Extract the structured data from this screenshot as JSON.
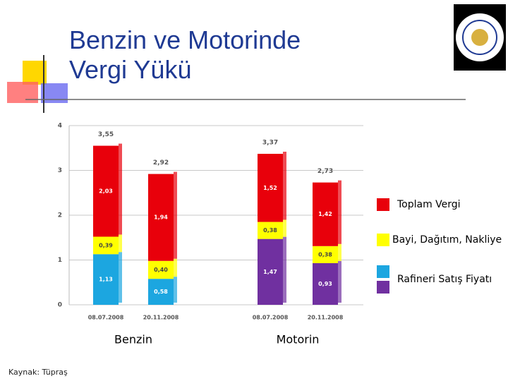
{
  "title": "Benzin ve Motorinde Vergi Yükü",
  "source": "Kaynak: Tüpraş",
  "chart_data": {
    "type": "stacked-bar",
    "categories": [
      "08.07.2008",
      "20.11.2008",
      "08.07.2008",
      "20.11.2008"
    ],
    "groups": [
      "Benzin",
      "Motorin"
    ],
    "ylim": [
      0,
      4
    ],
    "yticks": [
      0,
      1,
      2,
      3,
      4
    ],
    "grid": true,
    "series": [
      {
        "name": "Rafineri Satış Fiyatı",
        "colors": [
          "#1ca6e0",
          "#1ca6e0",
          "#7030a0",
          "#7030a0"
        ],
        "values": [
          1.13,
          0.58,
          1.47,
          0.93
        ],
        "value_labels": [
          "1,13",
          "0,58",
          "1,47",
          "0,93"
        ]
      },
      {
        "name": "Bayi, Dağıtım, Nakliye",
        "color": "#ffff00",
        "values": [
          0.39,
          0.4,
          0.38,
          0.38
        ],
        "value_labels": [
          "0,39",
          "0,40",
          "0,38",
          "0,38"
        ]
      },
      {
        "name": "Toplam Vergi",
        "color": "#e8000b",
        "values": [
          2.03,
          1.94,
          1.52,
          1.42
        ],
        "value_labels": [
          "2,03",
          "1,94",
          "1,52",
          "1,42"
        ]
      }
    ],
    "totals": [
      3.55,
      2.92,
      3.37,
      2.73
    ],
    "totals_labels": [
      "3,55",
      "2,92",
      "3,37",
      "2,73"
    ]
  }
}
